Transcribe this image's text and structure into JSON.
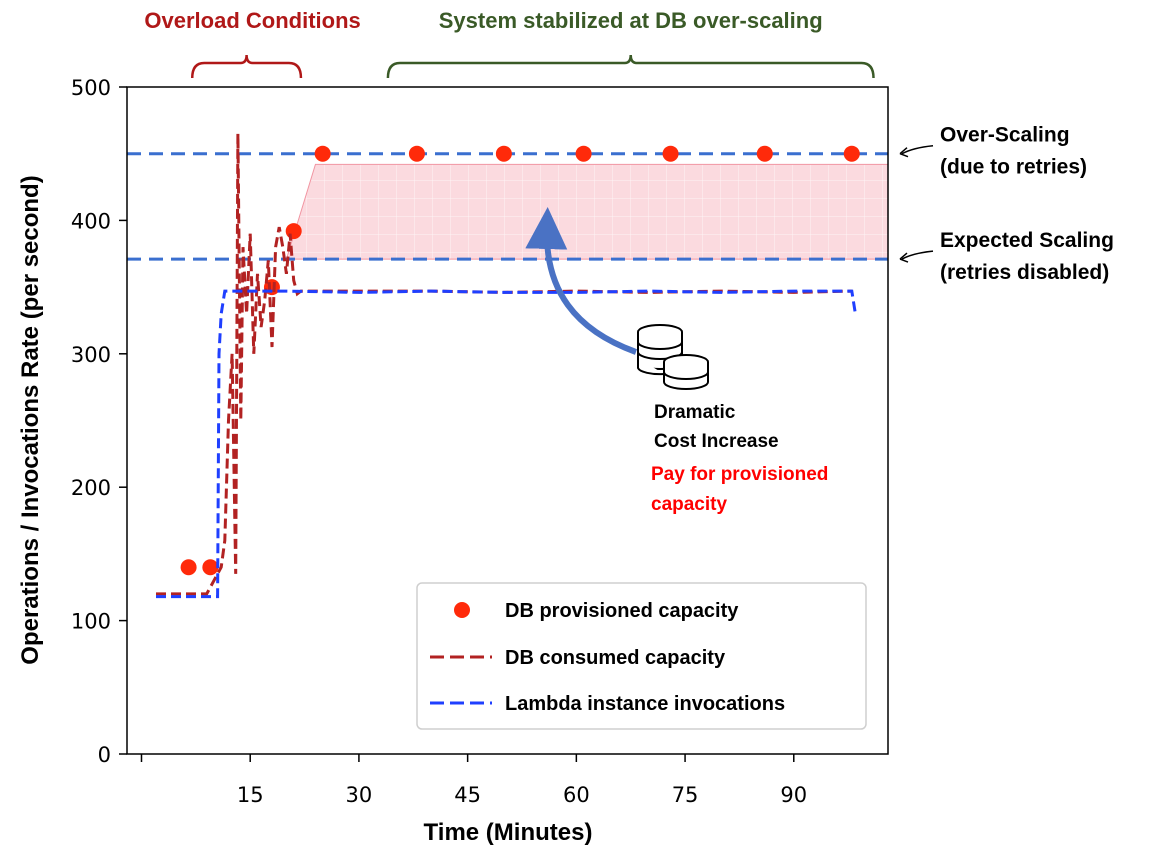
{
  "chart_data": {
    "type": "line",
    "xlabel": "Time (Minutes)",
    "ylabel": "Operations / Invocations Rate (per second)",
    "xlim": [
      -2,
      103
    ],
    "ylim": [
      0,
      500
    ],
    "x_ticks": [
      15,
      30,
      45,
      60,
      75,
      90
    ],
    "x_tick_labels": [
      "15",
      "30",
      "45",
      "60",
      "75",
      "90"
    ],
    "y_ticks": [
      0,
      100,
      200,
      300,
      400,
      500
    ],
    "y_tick_labels": [
      "0",
      "100",
      "200",
      "300",
      "400",
      "500"
    ],
    "series": [
      {
        "name": "DB provisioned capacity",
        "style": "markers",
        "color": "#ff2a0a",
        "x": [
          6.5,
          9.5,
          18,
          21,
          25,
          38,
          50,
          61,
          73,
          86,
          98
        ],
        "y": [
          140,
          140,
          350,
          392,
          450,
          450,
          450,
          450,
          450,
          450,
          450
        ]
      },
      {
        "name": "DB consumed capacity",
        "style": "dashed",
        "color": "#b22222",
        "x": [
          2,
          7,
          9,
          11,
          11.5,
          12,
          12.5,
          13,
          13.3,
          13.7,
          14,
          14.5,
          15,
          15.5,
          16,
          16.5,
          17,
          17.5,
          18,
          18.5,
          19,
          19.5,
          20,
          20.5,
          21,
          21.5,
          22,
          30,
          40,
          50,
          60,
          70,
          80,
          90,
          98
        ],
        "y": [
          120,
          120,
          120,
          140,
          160,
          250,
          300,
          135,
          465,
          250,
          380,
          330,
          390,
          300,
          360,
          320,
          340,
          370,
          305,
          380,
          395,
          380,
          360,
          390,
          355,
          345,
          347,
          347,
          347,
          346,
          347,
          346,
          347,
          346,
          347
        ]
      },
      {
        "name": "Lambda instance invocations",
        "style": "dashed",
        "color": "#1f3fff",
        "x": [
          2,
          8,
          10.5,
          10.7,
          11,
          11.5,
          12,
          15,
          20,
          30,
          40,
          50,
          60,
          70,
          80,
          90,
          98,
          98.5
        ],
        "y": [
          118,
          118,
          118,
          300,
          330,
          347,
          347,
          347,
          347,
          346,
          347,
          346,
          346,
          347,
          346,
          347,
          347,
          330
        ]
      }
    ],
    "reference_lines": [
      {
        "y": 450,
        "label": "Over-Scaling\n(due to retries)",
        "line1": "Over-Scaling",
        "line2": "(due to retries)"
      },
      {
        "y": 371,
        "label": "Expected Scaling\n(retries disabled)",
        "line1": "Expected Scaling",
        "line2": "(retries disabled)"
      }
    ],
    "shaded_region": {
      "x_start": 24,
      "x_end": 103,
      "y_low": 371,
      "y_high": 442,
      "color": "#f9c8cf"
    },
    "brackets": [
      {
        "label": "Overload Conditions",
        "x_start": 7,
        "x_end": 22
      },
      {
        "label": "System stabilized at DB over-scaling",
        "x_start": 34,
        "x_end": 101
      }
    ],
    "annotation": {
      "line1": "Dramatic",
      "line2": "Cost Increase",
      "red_line1": "Pay for provisioned",
      "red_line2": "capacity",
      "icon": "coins-icon"
    },
    "legend": {
      "placement": "bottom-right",
      "entries": [
        "DB provisioned capacity",
        "DB consumed capacity",
        "Lambda instance invocations"
      ]
    }
  },
  "colors": {
    "over_line": "#3a6fcf",
    "shade_stroke": "#f08a98",
    "arrow": "#4a72c4",
    "bracket_red": "#b01818",
    "bracket_green": "#3a5a27"
  }
}
